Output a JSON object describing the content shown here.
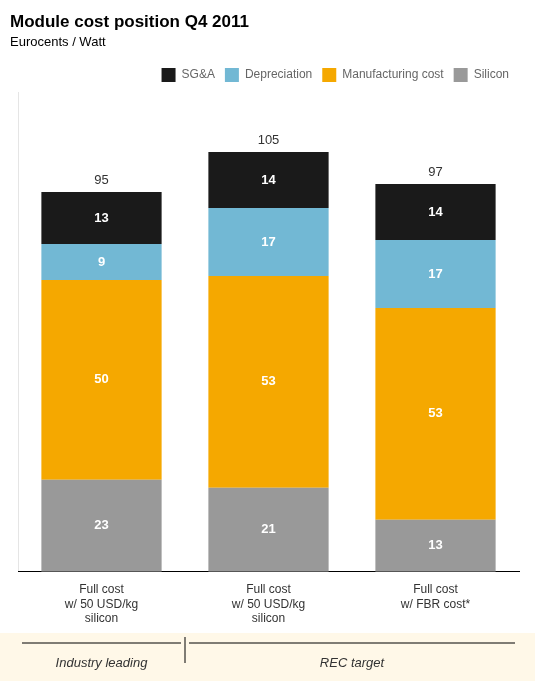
{
  "chart_data": {
    "type": "bar",
    "title": "Module cost position Q4 2011",
    "subtitle": "Eurocents / Watt",
    "categories": [
      "Full cost\nw/ 50 USD/kg\nsilicon",
      "Full cost\nw/ 50 USD/kg\nsilicon",
      "Full cost\nw/ FBR cost*"
    ],
    "groups": [
      "Industry leading",
      "REC target",
      "REC target"
    ],
    "series": [
      {
        "name": "Silicon",
        "color": "#999999",
        "values": [
          23,
          21,
          13
        ]
      },
      {
        "name": "Manufacturing cost",
        "color": "#F5A800",
        "values": [
          50,
          53,
          53
        ]
      },
      {
        "name": "Depreciation",
        "color": "#72B8D4",
        "values": [
          9,
          17,
          17
        ]
      },
      {
        "name": "SG&A",
        "color": "#1A1A1A",
        "values": [
          13,
          14,
          14
        ]
      }
    ],
    "totals": [
      95,
      105,
      97
    ],
    "ylim": [
      0,
      120
    ],
    "stacked": true,
    "data_labels": true,
    "tick_labels": "x",
    "grid": false,
    "legend": "upper right"
  }
}
